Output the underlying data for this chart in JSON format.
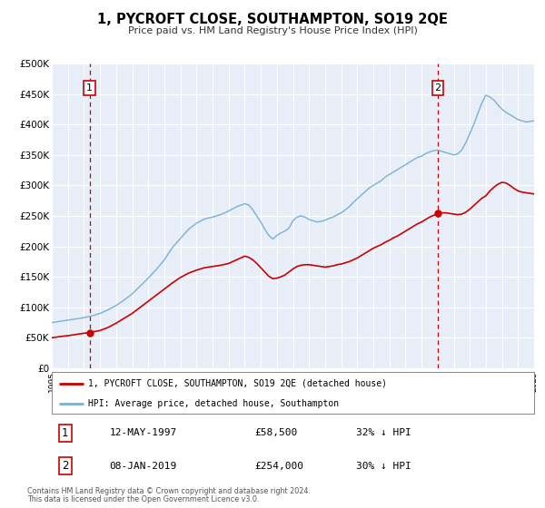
{
  "title": "1, PYCROFT CLOSE, SOUTHAMPTON, SO19 2QE",
  "subtitle": "Price paid vs. HM Land Registry's House Price Index (HPI)",
  "background_color": "#ffffff",
  "plot_bg_color": "#e8eef8",
  "grid_color": "#ffffff",
  "ylim": [
    0,
    500000
  ],
  "xlim_start": 1995,
  "xlim_end": 2025,
  "yticks": [
    0,
    50000,
    100000,
    150000,
    200000,
    250000,
    300000,
    350000,
    400000,
    450000,
    500000
  ],
  "ytick_labels": [
    "£0",
    "£50K",
    "£100K",
    "£150K",
    "£200K",
    "£250K",
    "£300K",
    "£350K",
    "£400K",
    "£450K",
    "£500K"
  ],
  "sale1_x": 1997.36,
  "sale1_y": 58500,
  "sale2_x": 2019.02,
  "sale2_y": 254000,
  "sale1_date": "12-MAY-1997",
  "sale1_price": "£58,500",
  "sale1_hpi": "32% ↓ HPI",
  "sale2_date": "08-JAN-2019",
  "sale2_price": "£254,000",
  "sale2_hpi": "30% ↓ HPI",
  "legend_label1": "1, PYCROFT CLOSE, SOUTHAMPTON, SO19 2QE (detached house)",
  "legend_label2": "HPI: Average price, detached house, Southampton",
  "footer1": "Contains HM Land Registry data © Crown copyright and database right 2024.",
  "footer2": "This data is licensed under the Open Government Licence v3.0.",
  "line1_color": "#cc0000",
  "line2_color": "#7ab0d4",
  "dashed_line_color": "#cc0000",
  "hpi_anchors": [
    [
      1995.0,
      75000
    ],
    [
      1995.5,
      77000
    ],
    [
      1996.0,
      79000
    ],
    [
      1996.5,
      81000
    ],
    [
      1997.0,
      83000
    ],
    [
      1997.5,
      86000
    ],
    [
      1998.0,
      90000
    ],
    [
      1998.5,
      96000
    ],
    [
      1999.0,
      103000
    ],
    [
      1999.5,
      112000
    ],
    [
      2000.0,
      122000
    ],
    [
      2000.5,
      135000
    ],
    [
      2001.0,
      148000
    ],
    [
      2001.5,
      162000
    ],
    [
      2002.0,
      178000
    ],
    [
      2002.5,
      198000
    ],
    [
      2003.0,
      213000
    ],
    [
      2003.5,
      228000
    ],
    [
      2004.0,
      238000
    ],
    [
      2004.5,
      245000
    ],
    [
      2005.0,
      248000
    ],
    [
      2005.5,
      252000
    ],
    [
      2006.0,
      258000
    ],
    [
      2006.5,
      265000
    ],
    [
      2007.0,
      270000
    ],
    [
      2007.25,
      268000
    ],
    [
      2007.5,
      260000
    ],
    [
      2007.75,
      250000
    ],
    [
      2008.0,
      240000
    ],
    [
      2008.25,
      228000
    ],
    [
      2008.5,
      218000
    ],
    [
      2008.75,
      212000
    ],
    [
      2009.0,
      218000
    ],
    [
      2009.25,
      222000
    ],
    [
      2009.5,
      225000
    ],
    [
      2009.75,
      230000
    ],
    [
      2010.0,
      242000
    ],
    [
      2010.25,
      248000
    ],
    [
      2010.5,
      250000
    ],
    [
      2010.75,
      248000
    ],
    [
      2011.0,
      244000
    ],
    [
      2011.25,
      242000
    ],
    [
      2011.5,
      240000
    ],
    [
      2011.75,
      241000
    ],
    [
      2012.0,
      243000
    ],
    [
      2012.25,
      246000
    ],
    [
      2012.5,
      248000
    ],
    [
      2012.75,
      252000
    ],
    [
      2013.0,
      255000
    ],
    [
      2013.25,
      260000
    ],
    [
      2013.5,
      265000
    ],
    [
      2013.75,
      272000
    ],
    [
      2014.0,
      278000
    ],
    [
      2014.25,
      284000
    ],
    [
      2014.5,
      290000
    ],
    [
      2014.75,
      296000
    ],
    [
      2015.0,
      300000
    ],
    [
      2015.25,
      304000
    ],
    [
      2015.5,
      308000
    ],
    [
      2015.75,
      314000
    ],
    [
      2016.0,
      318000
    ],
    [
      2016.25,
      322000
    ],
    [
      2016.5,
      326000
    ],
    [
      2016.75,
      330000
    ],
    [
      2017.0,
      334000
    ],
    [
      2017.25,
      338000
    ],
    [
      2017.5,
      342000
    ],
    [
      2017.75,
      346000
    ],
    [
      2018.0,
      348000
    ],
    [
      2018.25,
      352000
    ],
    [
      2018.5,
      355000
    ],
    [
      2018.75,
      357000
    ],
    [
      2019.0,
      358000
    ],
    [
      2019.25,
      356000
    ],
    [
      2019.5,
      354000
    ],
    [
      2019.75,
      352000
    ],
    [
      2020.0,
      350000
    ],
    [
      2020.25,
      352000
    ],
    [
      2020.5,
      358000
    ],
    [
      2020.75,
      370000
    ],
    [
      2021.0,
      385000
    ],
    [
      2021.25,
      400000
    ],
    [
      2021.5,
      418000
    ],
    [
      2021.75,
      435000
    ],
    [
      2022.0,
      448000
    ],
    [
      2022.25,
      445000
    ],
    [
      2022.5,
      440000
    ],
    [
      2022.75,
      432000
    ],
    [
      2023.0,
      425000
    ],
    [
      2023.25,
      420000
    ],
    [
      2023.5,
      416000
    ],
    [
      2023.75,
      412000
    ],
    [
      2024.0,
      408000
    ],
    [
      2024.25,
      406000
    ],
    [
      2024.5,
      404000
    ],
    [
      2024.75,
      405000
    ],
    [
      2025.0,
      406000
    ]
  ],
  "pp_anchors": [
    [
      1995.0,
      50000
    ],
    [
      1995.5,
      52000
    ],
    [
      1996.0,
      53500
    ],
    [
      1996.5,
      55500
    ],
    [
      1997.0,
      57500
    ],
    [
      1997.36,
      58500
    ],
    [
      1997.5,
      59500
    ],
    [
      1998.0,
      62000
    ],
    [
      1998.5,
      67000
    ],
    [
      1999.0,
      74000
    ],
    [
      1999.5,
      82000
    ],
    [
      2000.0,
      90000
    ],
    [
      2000.5,
      100000
    ],
    [
      2001.0,
      110000
    ],
    [
      2001.5,
      120000
    ],
    [
      2002.0,
      130000
    ],
    [
      2002.5,
      140000
    ],
    [
      2003.0,
      149000
    ],
    [
      2003.5,
      156000
    ],
    [
      2004.0,
      161000
    ],
    [
      2004.5,
      165000
    ],
    [
      2005.0,
      167000
    ],
    [
      2005.5,
      169000
    ],
    [
      2006.0,
      172000
    ],
    [
      2006.5,
      178000
    ],
    [
      2007.0,
      184000
    ],
    [
      2007.25,
      182000
    ],
    [
      2007.5,
      178000
    ],
    [
      2007.75,
      172000
    ],
    [
      2008.0,
      165000
    ],
    [
      2008.25,
      158000
    ],
    [
      2008.5,
      151000
    ],
    [
      2008.75,
      147000
    ],
    [
      2009.0,
      148000
    ],
    [
      2009.25,
      150000
    ],
    [
      2009.5,
      153000
    ],
    [
      2009.75,
      158000
    ],
    [
      2010.0,
      163000
    ],
    [
      2010.25,
      167000
    ],
    [
      2010.5,
      169000
    ],
    [
      2010.75,
      170000
    ],
    [
      2011.0,
      170000
    ],
    [
      2011.25,
      169000
    ],
    [
      2011.5,
      168000
    ],
    [
      2011.75,
      167000
    ],
    [
      2012.0,
      166000
    ],
    [
      2012.25,
      167000
    ],
    [
      2012.5,
      168000
    ],
    [
      2012.75,
      170000
    ],
    [
      2013.0,
      171000
    ],
    [
      2013.25,
      173000
    ],
    [
      2013.5,
      175000
    ],
    [
      2013.75,
      178000
    ],
    [
      2014.0,
      181000
    ],
    [
      2014.25,
      185000
    ],
    [
      2014.5,
      189000
    ],
    [
      2014.75,
      193000
    ],
    [
      2015.0,
      197000
    ],
    [
      2015.25,
      200000
    ],
    [
      2015.5,
      203000
    ],
    [
      2015.75,
      207000
    ],
    [
      2016.0,
      210000
    ],
    [
      2016.25,
      214000
    ],
    [
      2016.5,
      217000
    ],
    [
      2016.75,
      221000
    ],
    [
      2017.0,
      225000
    ],
    [
      2017.25,
      229000
    ],
    [
      2017.5,
      233000
    ],
    [
      2017.75,
      237000
    ],
    [
      2018.0,
      240000
    ],
    [
      2018.25,
      244000
    ],
    [
      2018.5,
      248000
    ],
    [
      2018.75,
      251000
    ],
    [
      2019.0,
      253000
    ],
    [
      2019.02,
      254000
    ],
    [
      2019.25,
      255000
    ],
    [
      2019.5,
      255000
    ],
    [
      2019.75,
      254000
    ],
    [
      2020.0,
      253000
    ],
    [
      2020.25,
      252000
    ],
    [
      2020.5,
      253000
    ],
    [
      2020.75,
      256000
    ],
    [
      2021.0,
      261000
    ],
    [
      2021.25,
      267000
    ],
    [
      2021.5,
      273000
    ],
    [
      2021.75,
      279000
    ],
    [
      2022.0,
      283000
    ],
    [
      2022.25,
      291000
    ],
    [
      2022.5,
      297000
    ],
    [
      2022.75,
      302000
    ],
    [
      2023.0,
      305000
    ],
    [
      2023.25,
      304000
    ],
    [
      2023.5,
      300000
    ],
    [
      2023.75,
      295000
    ],
    [
      2024.0,
      291000
    ],
    [
      2024.25,
      289000
    ],
    [
      2024.5,
      288000
    ],
    [
      2024.75,
      287000
    ],
    [
      2025.0,
      286000
    ]
  ]
}
